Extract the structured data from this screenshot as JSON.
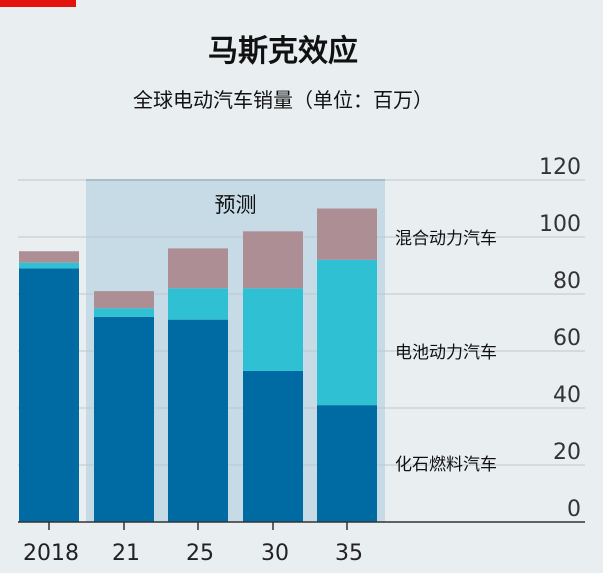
{
  "header": {
    "title": "马斯克效应",
    "subtitle": "全球电动汽车销量（单位：百万）"
  },
  "colors": {
    "background": "#e9eef1",
    "forecast_band": "#c6dbe6",
    "fossil": "#006ba2",
    "battery": "#2fc1d3",
    "hybrid": "#ae8e95",
    "grid": "#bfc7cc",
    "accent_red": "#e3120b"
  },
  "chart_data": {
    "type": "bar",
    "stacked": true,
    "title": "马斯克效应",
    "subtitle": "全球电动汽车销量（单位：百万）",
    "categories": [
      "2018",
      "21",
      "25",
      "30",
      "35"
    ],
    "series": [
      {
        "name": "化石燃料汽车",
        "key": "fossil",
        "values": [
          89,
          72,
          71,
          53,
          41
        ]
      },
      {
        "name": "电池动力汽车",
        "key": "battery",
        "values": [
          2,
          3,
          11,
          29,
          51
        ]
      },
      {
        "name": "混合动力汽车",
        "key": "hybrid",
        "values": [
          4,
          6,
          14,
          20,
          18
        ]
      }
    ],
    "ylim": [
      0,
      120
    ],
    "yticks": [
      0,
      20,
      40,
      60,
      80,
      100,
      120
    ],
    "forecast": {
      "label": "预测",
      "from_category": "21",
      "to_category": "35"
    },
    "xlabel": "",
    "ylabel": ""
  }
}
